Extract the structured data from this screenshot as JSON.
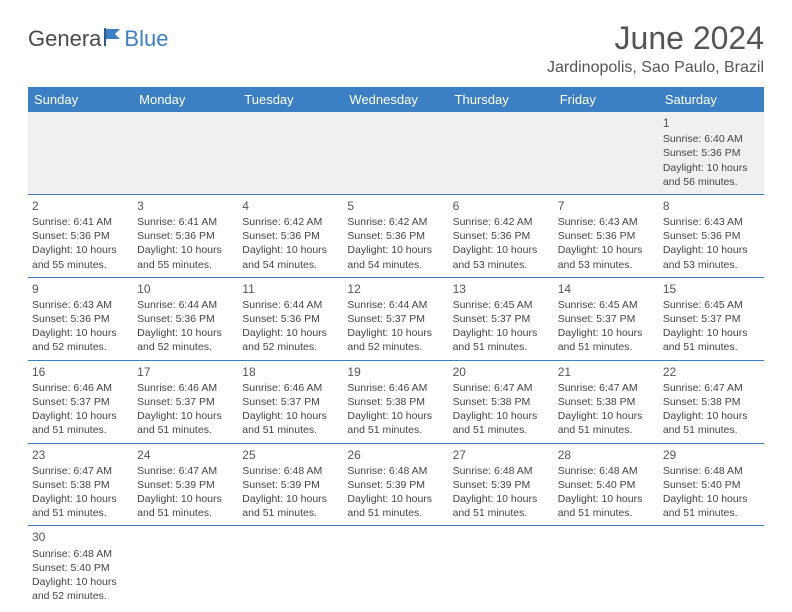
{
  "logo": {
    "text1": "Genera",
    "text2": "Blue"
  },
  "title": "June 2024",
  "location": "Jardinopolis, Sao Paulo, Brazil",
  "colors": {
    "header_bg": "#3b7fc4",
    "header_text": "#ffffff",
    "border": "#3b7fc4",
    "first_row_bg": "#f0f0f0",
    "text": "#444444",
    "title_text": "#555555"
  },
  "fonts": {
    "title_size": 32,
    "location_size": 16,
    "header_size": 13,
    "cell_size": 10.5,
    "daynum_size": 12
  },
  "weekdays": [
    "Sunday",
    "Monday",
    "Tuesday",
    "Wednesday",
    "Thursday",
    "Friday",
    "Saturday"
  ],
  "weeks": [
    [
      null,
      null,
      null,
      null,
      null,
      null,
      {
        "n": "1",
        "sr": "Sunrise: 6:40 AM",
        "ss": "Sunset: 5:36 PM",
        "d1": "Daylight: 10 hours",
        "d2": "and 56 minutes."
      }
    ],
    [
      {
        "n": "2",
        "sr": "Sunrise: 6:41 AM",
        "ss": "Sunset: 5:36 PM",
        "d1": "Daylight: 10 hours",
        "d2": "and 55 minutes."
      },
      {
        "n": "3",
        "sr": "Sunrise: 6:41 AM",
        "ss": "Sunset: 5:36 PM",
        "d1": "Daylight: 10 hours",
        "d2": "and 55 minutes."
      },
      {
        "n": "4",
        "sr": "Sunrise: 6:42 AM",
        "ss": "Sunset: 5:36 PM",
        "d1": "Daylight: 10 hours",
        "d2": "and 54 minutes."
      },
      {
        "n": "5",
        "sr": "Sunrise: 6:42 AM",
        "ss": "Sunset: 5:36 PM",
        "d1": "Daylight: 10 hours",
        "d2": "and 54 minutes."
      },
      {
        "n": "6",
        "sr": "Sunrise: 6:42 AM",
        "ss": "Sunset: 5:36 PM",
        "d1": "Daylight: 10 hours",
        "d2": "and 53 minutes."
      },
      {
        "n": "7",
        "sr": "Sunrise: 6:43 AM",
        "ss": "Sunset: 5:36 PM",
        "d1": "Daylight: 10 hours",
        "d2": "and 53 minutes."
      },
      {
        "n": "8",
        "sr": "Sunrise: 6:43 AM",
        "ss": "Sunset: 5:36 PM",
        "d1": "Daylight: 10 hours",
        "d2": "and 53 minutes."
      }
    ],
    [
      {
        "n": "9",
        "sr": "Sunrise: 6:43 AM",
        "ss": "Sunset: 5:36 PM",
        "d1": "Daylight: 10 hours",
        "d2": "and 52 minutes."
      },
      {
        "n": "10",
        "sr": "Sunrise: 6:44 AM",
        "ss": "Sunset: 5:36 PM",
        "d1": "Daylight: 10 hours",
        "d2": "and 52 minutes."
      },
      {
        "n": "11",
        "sr": "Sunrise: 6:44 AM",
        "ss": "Sunset: 5:36 PM",
        "d1": "Daylight: 10 hours",
        "d2": "and 52 minutes."
      },
      {
        "n": "12",
        "sr": "Sunrise: 6:44 AM",
        "ss": "Sunset: 5:37 PM",
        "d1": "Daylight: 10 hours",
        "d2": "and 52 minutes."
      },
      {
        "n": "13",
        "sr": "Sunrise: 6:45 AM",
        "ss": "Sunset: 5:37 PM",
        "d1": "Daylight: 10 hours",
        "d2": "and 51 minutes."
      },
      {
        "n": "14",
        "sr": "Sunrise: 6:45 AM",
        "ss": "Sunset: 5:37 PM",
        "d1": "Daylight: 10 hours",
        "d2": "and 51 minutes."
      },
      {
        "n": "15",
        "sr": "Sunrise: 6:45 AM",
        "ss": "Sunset: 5:37 PM",
        "d1": "Daylight: 10 hours",
        "d2": "and 51 minutes."
      }
    ],
    [
      {
        "n": "16",
        "sr": "Sunrise: 6:46 AM",
        "ss": "Sunset: 5:37 PM",
        "d1": "Daylight: 10 hours",
        "d2": "and 51 minutes."
      },
      {
        "n": "17",
        "sr": "Sunrise: 6:46 AM",
        "ss": "Sunset: 5:37 PM",
        "d1": "Daylight: 10 hours",
        "d2": "and 51 minutes."
      },
      {
        "n": "18",
        "sr": "Sunrise: 6:46 AM",
        "ss": "Sunset: 5:37 PM",
        "d1": "Daylight: 10 hours",
        "d2": "and 51 minutes."
      },
      {
        "n": "19",
        "sr": "Sunrise: 6:46 AM",
        "ss": "Sunset: 5:38 PM",
        "d1": "Daylight: 10 hours",
        "d2": "and 51 minutes."
      },
      {
        "n": "20",
        "sr": "Sunrise: 6:47 AM",
        "ss": "Sunset: 5:38 PM",
        "d1": "Daylight: 10 hours",
        "d2": "and 51 minutes."
      },
      {
        "n": "21",
        "sr": "Sunrise: 6:47 AM",
        "ss": "Sunset: 5:38 PM",
        "d1": "Daylight: 10 hours",
        "d2": "and 51 minutes."
      },
      {
        "n": "22",
        "sr": "Sunrise: 6:47 AM",
        "ss": "Sunset: 5:38 PM",
        "d1": "Daylight: 10 hours",
        "d2": "and 51 minutes."
      }
    ],
    [
      {
        "n": "23",
        "sr": "Sunrise: 6:47 AM",
        "ss": "Sunset: 5:38 PM",
        "d1": "Daylight: 10 hours",
        "d2": "and 51 minutes."
      },
      {
        "n": "24",
        "sr": "Sunrise: 6:47 AM",
        "ss": "Sunset: 5:39 PM",
        "d1": "Daylight: 10 hours",
        "d2": "and 51 minutes."
      },
      {
        "n": "25",
        "sr": "Sunrise: 6:48 AM",
        "ss": "Sunset: 5:39 PM",
        "d1": "Daylight: 10 hours",
        "d2": "and 51 minutes."
      },
      {
        "n": "26",
        "sr": "Sunrise: 6:48 AM",
        "ss": "Sunset: 5:39 PM",
        "d1": "Daylight: 10 hours",
        "d2": "and 51 minutes."
      },
      {
        "n": "27",
        "sr": "Sunrise: 6:48 AM",
        "ss": "Sunset: 5:39 PM",
        "d1": "Daylight: 10 hours",
        "d2": "and 51 minutes."
      },
      {
        "n": "28",
        "sr": "Sunrise: 6:48 AM",
        "ss": "Sunset: 5:40 PM",
        "d1": "Daylight: 10 hours",
        "d2": "and 51 minutes."
      },
      {
        "n": "29",
        "sr": "Sunrise: 6:48 AM",
        "ss": "Sunset: 5:40 PM",
        "d1": "Daylight: 10 hours",
        "d2": "and 51 minutes."
      }
    ],
    [
      {
        "n": "30",
        "sr": "Sunrise: 6:48 AM",
        "ss": "Sunset: 5:40 PM",
        "d1": "Daylight: 10 hours",
        "d2": "and 52 minutes."
      },
      null,
      null,
      null,
      null,
      null,
      null
    ]
  ]
}
